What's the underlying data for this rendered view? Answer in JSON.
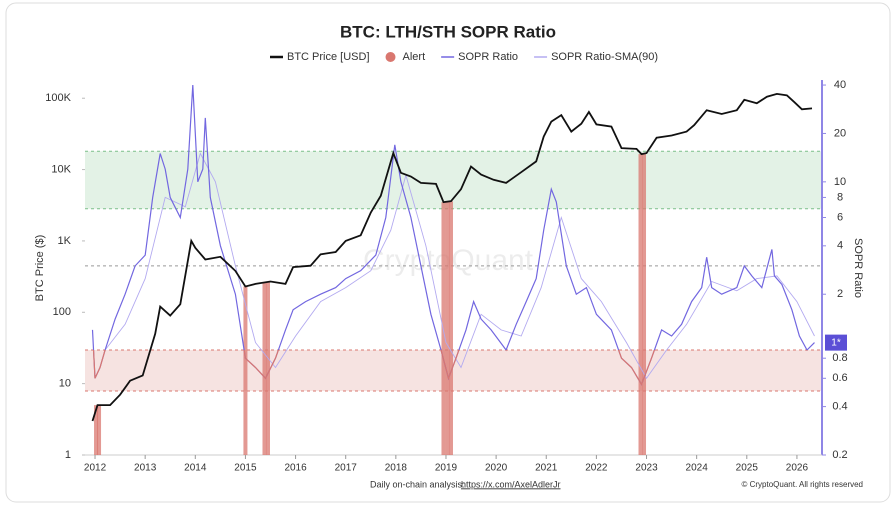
{
  "chart_data": {
    "type": "line",
    "title": "BTC: LTH/STH SOPR Ratio",
    "y_label": "BTC Price ($)",
    "y2_label": "SOPR Ratio",
    "watermark": "CryptoQuant",
    "footer_note": "Daily on-chain analysis: ",
    "footer_link": "https://x.com/AxelAdlerJr",
    "copyright": "© CryptoQuant. All rights reserved",
    "xlim": [
      2011.8,
      2026.5
    ],
    "xticks": [
      2012,
      2013,
      2014,
      2015,
      2016,
      2017,
      2018,
      2019,
      2020,
      2021,
      2022,
      2023,
      2024,
      2025,
      2026
    ],
    "ylog": true,
    "ylim": [
      1,
      180000
    ],
    "yticks": [
      1,
      10,
      100,
      {
        "value": 1000,
        "label": "1K"
      },
      {
        "value": 10000,
        "label": "10K"
      },
      {
        "value": 100000,
        "label": "100K"
      }
    ],
    "y2log": true,
    "y2lim": [
      0.2,
      43
    ],
    "y2ticks": [
      0.2,
      0.4,
      0.6,
      0.8,
      2,
      4,
      6,
      8,
      10,
      20,
      40
    ],
    "current_value": {
      "value": 1,
      "label": "1*"
    },
    "zones": [
      {
        "y2lim": [
          6.8,
          15.5
        ],
        "color": "#dcefe0",
        "line_color": "#7cc08a"
      },
      {
        "y2lim": [
          0.5,
          0.9
        ],
        "color": "#f4dcd9",
        "line_color": "#d9776f"
      }
    ],
    "threshold": 3,
    "low_color": "#d9776f",
    "series": [
      {
        "name": "BTC Price [USD]",
        "color": "#111111",
        "axis": "y",
        "width": 1.8,
        "x": [
          2011.95,
          2012.05,
          2012.3,
          2012.5,
          2012.7,
          2012.95,
          2013.2,
          2013.3,
          2013.5,
          2013.7,
          2013.92,
          2014.0,
          2014.2,
          2014.5,
          2014.8,
          2015.0,
          2015.2,
          2015.5,
          2015.8,
          2015.95,
          2016.3,
          2016.5,
          2016.8,
          2017.0,
          2017.3,
          2017.5,
          2017.7,
          2017.95,
          2018.1,
          2018.3,
          2018.5,
          2018.8,
          2018.95,
          2019.1,
          2019.3,
          2019.5,
          2019.7,
          2019.95,
          2020.2,
          2020.5,
          2020.8,
          2020.95,
          2021.1,
          2021.3,
          2021.5,
          2021.7,
          2021.85,
          2022.0,
          2022.3,
          2022.5,
          2022.8,
          2022.9,
          2023.0,
          2023.2,
          2023.5,
          2023.8,
          2023.95,
          2024.2,
          2024.5,
          2024.8,
          2024.95,
          2025.2,
          2025.4,
          2025.6,
          2025.8,
          2025.95,
          2026.1,
          2026.3
        ],
        "values": [
          3,
          5,
          5,
          7,
          11,
          13,
          50,
          120,
          90,
          130,
          1000,
          800,
          550,
          600,
          380,
          230,
          250,
          270,
          250,
          430,
          450,
          650,
          700,
          1000,
          1200,
          2500,
          4300,
          17000,
          9000,
          8000,
          6500,
          6300,
          3500,
          3600,
          5300,
          11000,
          8500,
          7200,
          6500,
          9200,
          13000,
          29000,
          47000,
          58000,
          34000,
          44000,
          64000,
          43000,
          40000,
          20000,
          19500,
          16500,
          17000,
          28000,
          30000,
          34000,
          42000,
          68000,
          60000,
          68000,
          95000,
          85000,
          105000,
          115000,
          110000,
          88000,
          70000,
          72000
        ]
      },
      {
        "name": "SOPR Ratio",
        "color": "#7267e0",
        "axis": "y2",
        "width": 1.2,
        "x": [
          2011.95,
          2012.0,
          2012.1,
          2012.2,
          2012.4,
          2012.6,
          2012.8,
          2013.0,
          2013.15,
          2013.3,
          2013.4,
          2013.5,
          2013.7,
          2013.85,
          2013.95,
          2014.05,
          2014.15,
          2014.2,
          2014.3,
          2014.5,
          2014.8,
          2015.0,
          2015.2,
          2015.4,
          2015.6,
          2015.8,
          2015.95,
          2016.2,
          2016.5,
          2016.8,
          2017.0,
          2017.3,
          2017.6,
          2017.8,
          2017.98,
          2018.1,
          2018.3,
          2018.5,
          2018.7,
          2018.9,
          2019.05,
          2019.2,
          2019.4,
          2019.55,
          2019.7,
          2019.9,
          2020.2,
          2020.4,
          2020.6,
          2020.8,
          2020.95,
          2021.1,
          2021.2,
          2021.4,
          2021.6,
          2021.8,
          2022.0,
          2022.3,
          2022.5,
          2022.7,
          2022.9,
          2023.1,
          2023.3,
          2023.5,
          2023.7,
          2023.9,
          2024.1,
          2024.2,
          2024.3,
          2024.5,
          2024.8,
          2024.95,
          2025.1,
          2025.3,
          2025.5,
          2025.55,
          2025.7,
          2025.9,
          2026.05,
          2026.2,
          2026.35
        ],
        "values": [
          1.2,
          0.6,
          0.7,
          0.9,
          1.4,
          2.0,
          3.0,
          3.5,
          8,
          15,
          12,
          8,
          6,
          12,
          40,
          10,
          12,
          25,
          8,
          4,
          2,
          0.8,
          0.7,
          0.6,
          0.8,
          1.2,
          1.6,
          1.8,
          2.0,
          2.2,
          2.5,
          2.8,
          3.5,
          6,
          17,
          10,
          6,
          3,
          1.5,
          0.9,
          0.6,
          0.8,
          1.2,
          1.8,
          1.4,
          1.2,
          0.9,
          1.3,
          1.8,
          2.5,
          5,
          9,
          7.5,
          3,
          2,
          2.2,
          1.5,
          1.2,
          0.8,
          0.7,
          0.55,
          0.8,
          1.2,
          1.1,
          1.3,
          1.8,
          2.2,
          3.4,
          2.2,
          2.0,
          2.2,
          3.0,
          2.6,
          2.2,
          3.8,
          2.6,
          2.3,
          1.6,
          1.1,
          0.9,
          1.0
        ]
      },
      {
        "name": "SOPR Ratio-SMA(90)",
        "color": "#b3aaf0",
        "axis": "y2",
        "width": 0.9,
        "x": [
          2012.2,
          2012.6,
          2013.0,
          2013.4,
          2013.8,
          2014.1,
          2014.4,
          2014.8,
          2015.2,
          2015.6,
          2016.0,
          2016.5,
          2017.0,
          2017.5,
          2017.9,
          2018.2,
          2018.6,
          2019.0,
          2019.3,
          2019.7,
          2020.1,
          2020.5,
          2020.9,
          2021.3,
          2021.7,
          2022.1,
          2022.6,
          2023.0,
          2023.4,
          2023.8,
          2024.3,
          2024.8,
          2025.2,
          2025.6,
          2026.0,
          2026.35
        ],
        "values": [
          0.9,
          1.3,
          2.5,
          8,
          7,
          15,
          10,
          3,
          1.0,
          0.7,
          1.1,
          1.8,
          2.2,
          2.8,
          5,
          11,
          4,
          1.0,
          0.7,
          1.5,
          1.2,
          1.1,
          2.2,
          6,
          2.5,
          1.8,
          1.0,
          0.6,
          0.9,
          1.3,
          2.4,
          2.1,
          2.5,
          2.6,
          1.8,
          1.1
        ]
      }
    ],
    "alerts": {
      "name": "Alert",
      "color": "#d9776f",
      "x": [
        2012.02,
        2012.08,
        2015.0,
        2015.38,
        2015.45,
        2018.95,
        2019.03,
        2019.1,
        2022.88,
        2022.95
      ],
      "values": [
        5,
        5,
        230,
        260,
        265,
        3500,
        3550,
        3600,
        16500,
        16800
      ]
    }
  }
}
